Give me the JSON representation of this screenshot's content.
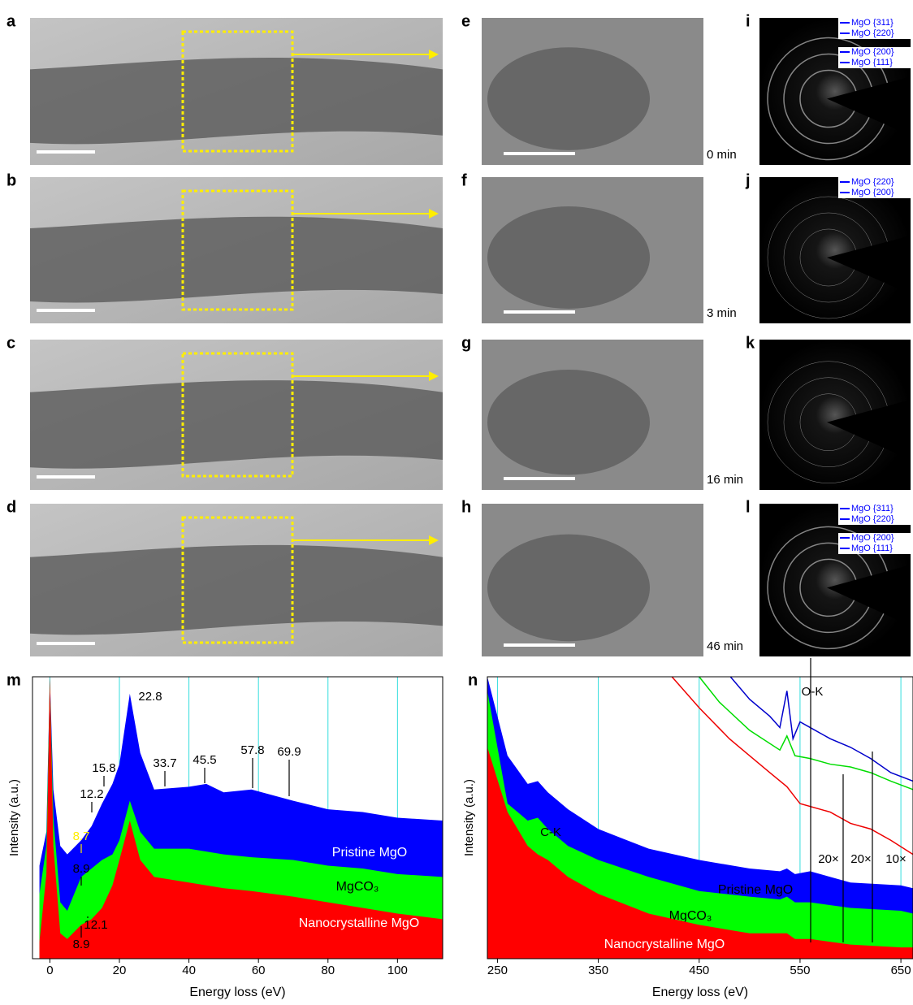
{
  "rows": [
    {
      "tem": "a",
      "zoom": "e",
      "time": "0 min",
      "saed": "i",
      "rings": [
        "MgO {311}",
        "MgO {220}",
        "MgO {200}",
        "MgO {111}"
      ]
    },
    {
      "tem": "b",
      "zoom": "f",
      "time": "3 min",
      "saed": "j",
      "rings": [
        "MgO {220}",
        "MgO {200}"
      ]
    },
    {
      "tem": "c",
      "zoom": "g",
      "time": "16 min",
      "saed": "k"
    },
    {
      "tem": "d",
      "zoom": "h",
      "time": "46 min",
      "saed": "l",
      "rings": [
        "MgO {311}",
        "MgO {220}",
        "MgO {200}",
        "MgO {111}"
      ]
    }
  ],
  "chart_data": [
    {
      "type": "area",
      "label": "m",
      "xlabel": "Energy loss (eV)",
      "ylabel": "Intensity (a.u.)",
      "xlim": [
        -5,
        113
      ],
      "xticks": [
        0,
        20,
        40,
        60,
        80,
        100
      ],
      "ylim": [
        0,
        100
      ],
      "grid": true,
      "x": [
        -3,
        -1,
        0,
        1,
        3,
        5,
        9,
        12,
        15,
        18,
        20,
        23,
        26,
        30,
        40,
        45,
        50,
        58,
        70,
        80,
        90,
        100,
        113
      ],
      "series": [
        {
          "name": "Pristine MgO",
          "color": "#0000ff",
          "values": [
            33,
            45,
            100,
            60,
            40,
            37,
            42,
            47,
            55,
            62,
            69,
            94,
            73,
            60,
            61,
            62,
            59,
            60,
            56,
            53,
            52,
            50,
            49
          ]
        },
        {
          "name": "MgCO₃",
          "color": "#00ff00",
          "values": [
            23,
            40,
            100,
            50,
            20,
            17,
            29,
            32,
            35,
            37,
            42,
            56,
            45,
            39,
            39,
            38,
            37,
            36,
            35,
            33,
            32,
            30,
            29
          ]
        },
        {
          "name": "Nanocrystalline MgO",
          "color": "#ff0000",
          "values": [
            6,
            30,
            100,
            40,
            9,
            7,
            12,
            14,
            18,
            26,
            35,
            49,
            35,
            29,
            27,
            26,
            25,
            24,
            22,
            20,
            18,
            16,
            14
          ]
        }
      ],
      "annotations": [
        "22.8",
        "15.8",
        "12.2",
        "8.7",
        "33.7",
        "45.5",
        "57.8",
        "69.9",
        "8.9",
        "8.9",
        "12.1"
      ]
    },
    {
      "type": "area",
      "label": "n",
      "xlabel": "Energy loss (eV)",
      "ylabel": "Intensity (a.u.)",
      "xlim": [
        240,
        662
      ],
      "xticks": [
        250,
        350,
        450,
        550,
        650
      ],
      "ylim": [
        0,
        100
      ],
      "grid": true,
      "x": [
        240,
        260,
        280,
        290,
        300,
        320,
        350,
        400,
        450,
        500,
        530,
        537,
        545,
        560,
        600,
        650,
        662
      ],
      "series": [
        {
          "name": "Pristine MgO",
          "color": "#0000ff",
          "values": [
            100,
            72,
            62,
            63,
            59,
            53,
            46,
            39,
            35,
            32,
            31,
            32,
            30,
            31,
            27,
            26,
            25
          ]
        },
        {
          "name": "MgCO₃",
          "color": "#00ff00",
          "values": [
            95,
            55,
            49,
            50,
            46,
            40,
            35,
            29,
            24,
            22,
            21,
            22,
            20,
            20,
            18,
            17,
            16
          ]
        },
        {
          "name": "Nanocrystalline MgO",
          "color": "#ff0000",
          "values": [
            75,
            52,
            40,
            37,
            35,
            29,
            23,
            16,
            12,
            9,
            9,
            9,
            7,
            7,
            5,
            4,
            4
          ]
        },
        {
          "style": "line",
          "color": "#0000cc",
          "x": [
            481,
            500,
            520,
            530,
            537,
            543,
            550,
            560,
            580,
            600,
            620,
            640,
            662
          ],
          "values": [
            100,
            92,
            86,
            82,
            95,
            78,
            84,
            82,
            78,
            75,
            71,
            66,
            63
          ]
        },
        {
          "style": "line",
          "color": "#00dd00",
          "x": [
            450,
            470,
            500,
            530,
            537,
            545,
            560,
            580,
            600,
            620,
            640,
            662
          ],
          "values": [
            100,
            91,
            81,
            74,
            79,
            72,
            71,
            69,
            68,
            66,
            63,
            60
          ]
        },
        {
          "style": "line",
          "color": "#ee0000",
          "x": [
            423,
            450,
            480,
            500,
            520,
            537,
            550,
            580,
            600,
            620,
            640,
            662
          ],
          "values": [
            100,
            89,
            78,
            72,
            66,
            61,
            55,
            52,
            48,
            46,
            42,
            37
          ]
        }
      ],
      "annotations": [
        "O-K",
        "C-K",
        "20×",
        "20×",
        "10×"
      ]
    }
  ]
}
